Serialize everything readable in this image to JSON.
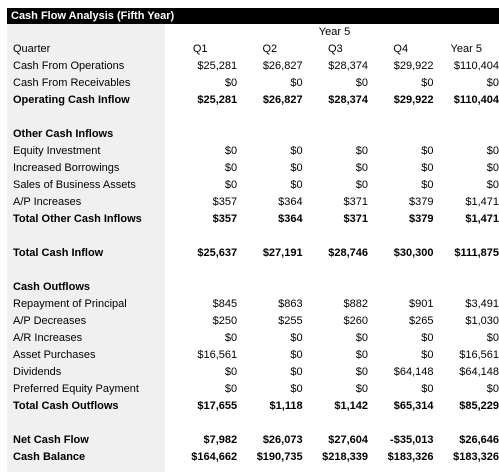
{
  "title": "Cash Flow Analysis (Fifth Year)",
  "year_label": "Year 5",
  "columns": [
    "Q1",
    "Q2",
    "Q3",
    "Q4",
    "Year 5"
  ],
  "header_label": "Quarter",
  "rows": [
    {
      "type": "header",
      "label": "Quarter",
      "values": [
        "Q1",
        "Q2",
        "Q3",
        "Q4",
        "Year 5"
      ]
    },
    {
      "type": "data",
      "label": "Cash From Operations",
      "values": [
        "$25,281",
        "$26,827",
        "$28,374",
        "$29,922",
        "$110,404"
      ]
    },
    {
      "type": "data",
      "label": "Cash From Receivables",
      "values": [
        "$0",
        "$0",
        "$0",
        "$0",
        "$0"
      ]
    },
    {
      "type": "bold",
      "label": "Operating Cash Inflow",
      "values": [
        "$25,281",
        "$26,827",
        "$28,374",
        "$29,922",
        "$110,404"
      ]
    },
    {
      "type": "blank",
      "label": "",
      "values": [
        "",
        "",
        "",
        "",
        ""
      ]
    },
    {
      "type": "section",
      "label": "Other Cash Inflows",
      "values": [
        "",
        "",
        "",
        "",
        ""
      ]
    },
    {
      "type": "data",
      "label": "Equity Investment",
      "values": [
        "$0",
        "$0",
        "$0",
        "$0",
        "$0"
      ]
    },
    {
      "type": "data",
      "label": "Increased Borrowings",
      "values": [
        "$0",
        "$0",
        "$0",
        "$0",
        "$0"
      ]
    },
    {
      "type": "data",
      "label": "Sales of Business Assets",
      "values": [
        "$0",
        "$0",
        "$0",
        "$0",
        "$0"
      ]
    },
    {
      "type": "data",
      "label": "A/P Increases",
      "values": [
        "$357",
        "$364",
        "$371",
        "$379",
        "$1,471"
      ]
    },
    {
      "type": "bold",
      "label": "Total Other Cash Inflows",
      "values": [
        "$357",
        "$364",
        "$371",
        "$379",
        "$1,471"
      ]
    },
    {
      "type": "blank",
      "label": "",
      "values": [
        "",
        "",
        "",
        "",
        ""
      ]
    },
    {
      "type": "bold",
      "label": "Total Cash Inflow",
      "values": [
        "$25,637",
        "$27,191",
        "$28,746",
        "$30,300",
        "$111,875"
      ]
    },
    {
      "type": "blank",
      "label": "",
      "values": [
        "",
        "",
        "",
        "",
        ""
      ]
    },
    {
      "type": "section",
      "label": "Cash Outflows",
      "values": [
        "",
        "",
        "",
        "",
        ""
      ]
    },
    {
      "type": "data",
      "label": "Repayment of Principal",
      "values": [
        "$845",
        "$863",
        "$882",
        "$901",
        "$3,491"
      ]
    },
    {
      "type": "data",
      "label": "A/P Decreases",
      "values": [
        "$250",
        "$255",
        "$260",
        "$265",
        "$1,030"
      ]
    },
    {
      "type": "data",
      "label": "A/R Increases",
      "values": [
        "$0",
        "$0",
        "$0",
        "$0",
        "$0"
      ]
    },
    {
      "type": "data",
      "label": "Asset Purchases",
      "values": [
        "$16,561",
        "$0",
        "$0",
        "$0",
        "$16,561"
      ]
    },
    {
      "type": "data",
      "label": "Dividends",
      "values": [
        "$0",
        "$0",
        "$0",
        "$64,148",
        "$64,148"
      ]
    },
    {
      "type": "data",
      "label": "Preferred Equity Payment",
      "values": [
        "$0",
        "$0",
        "$0",
        "$0",
        "$0"
      ]
    },
    {
      "type": "bold",
      "label": "Total Cash Outflows",
      "values": [
        "$17,655",
        "$1,118",
        "$1,142",
        "$65,314",
        "$85,229"
      ]
    },
    {
      "type": "blank",
      "label": "",
      "values": [
        "",
        "",
        "",
        "",
        ""
      ]
    },
    {
      "type": "bold",
      "label": "Net Cash Flow",
      "values": [
        "$7,982",
        "$26,073",
        "$27,604",
        "-$35,013",
        "$26,646"
      ]
    },
    {
      "type": "bold",
      "label": "Cash Balance",
      "values": [
        "$164,662",
        "$190,735",
        "$218,339",
        "$183,326",
        "$183,326"
      ]
    }
  ]
}
